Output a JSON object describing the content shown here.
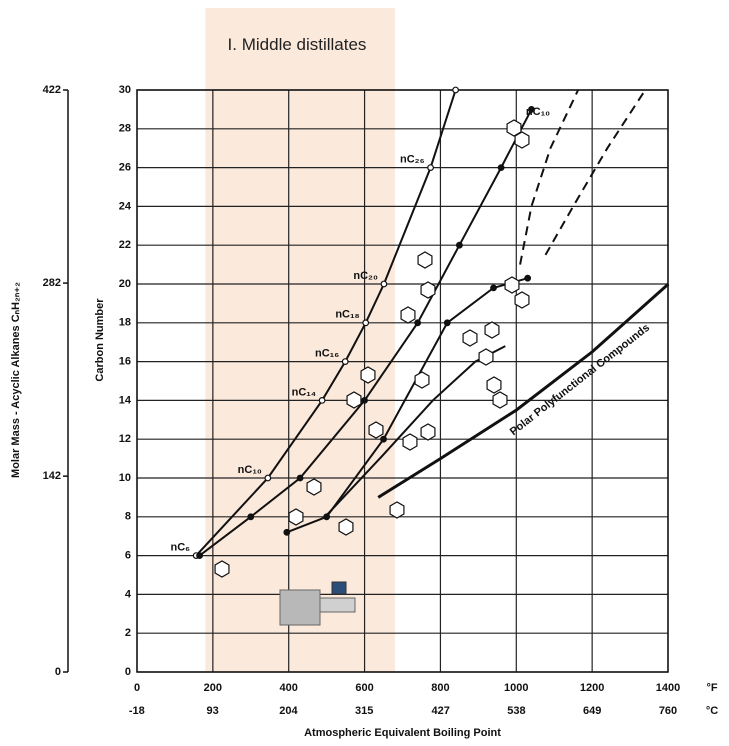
{
  "chart_data": {
    "type": "line",
    "xlabel": "Atmospheric Equivalent Boiling Point",
    "ylabel": "Carbon Number",
    "y2label": "Molar Mass - Acyclic Alkanes CₙH₂ₙ₊₂",
    "xunit": "°F",
    "x2unit": "°C",
    "xlim": [
      0,
      1400
    ],
    "xticks": [
      0,
      200,
      400,
      600,
      800,
      1000,
      1200,
      1400
    ],
    "x2lim": [
      -17.78,
      760
    ],
    "x2ticks": [
      -18,
      93,
      204,
      315,
      427,
      538,
      649,
      760
    ],
    "ylim": [
      0,
      30
    ],
    "yticks": [
      0,
      2,
      4,
      6,
      8,
      10,
      12,
      14,
      16,
      18,
      20,
      22,
      24,
      26,
      28,
      30
    ],
    "y2lim": [
      0,
      422
    ],
    "y2ticks": [
      0,
      142,
      282,
      422
    ],
    "grid": true,
    "region": {
      "label": "I. Middle distillates",
      "xrange": [
        180,
        680
      ],
      "color": "#fbe9dc"
    },
    "series": [
      {
        "color": "#111111",
        "line_style": "solid",
        "marker": "open",
        "x": [
          156,
          345,
          488,
          549,
          603,
          651,
          774,
          840
        ],
        "values": [
          6,
          10,
          14,
          16,
          18,
          20,
          26,
          30
        ],
        "value_labels": [
          "nC₆",
          "nC₁₀",
          "nC₁₄",
          "nC₁₆",
          "nC₁₈",
          "nC₂₀",
          "nC₂₆",
          null
        ]
      },
      {
        "color": "#111111",
        "line_style": "solid",
        "marker": "filled",
        "x": [
          165,
          300,
          430,
          600,
          740,
          850,
          960,
          1040
        ],
        "values": [
          6,
          8,
          10,
          14,
          18,
          22,
          26,
          29
        ]
      },
      {
        "color": "#111111",
        "line_style": "solid",
        "marker": "filled",
        "x": [
          395,
          500,
          650,
          818,
          940,
          1030
        ],
        "values": [
          7.2,
          8,
          12,
          18,
          19.8,
          20.3
        ]
      },
      {
        "color": "#111111",
        "line_style": "solid",
        "marker": "none",
        "x": [
          496,
          640,
          780,
          892,
          971
        ],
        "values": [
          8,
          11,
          14,
          16,
          16.8
        ]
      },
      {
        "color": "#111111",
        "line_style": "solid",
        "marker": "none",
        "x": [
          636,
          800,
          1000,
          1200,
          1401
        ],
        "values": [
          9,
          11,
          13.5,
          16.5,
          20
        ]
      },
      {
        "color": "#111111",
        "line_style": "dashed",
        "marker": "none",
        "x": [
          1010,
          1040,
          1090,
          1163
        ],
        "values": [
          21,
          24,
          27,
          30
        ]
      },
      {
        "color": "#111111",
        "line_style": "dashed",
        "marker": "none",
        "x": [
          1077,
          1150,
          1240,
          1340
        ],
        "values": [
          21.5,
          24,
          27,
          30
        ]
      }
    ],
    "annotations": [
      "nC₁₀",
      "Polar Polyfunctional Compounds"
    ]
  }
}
